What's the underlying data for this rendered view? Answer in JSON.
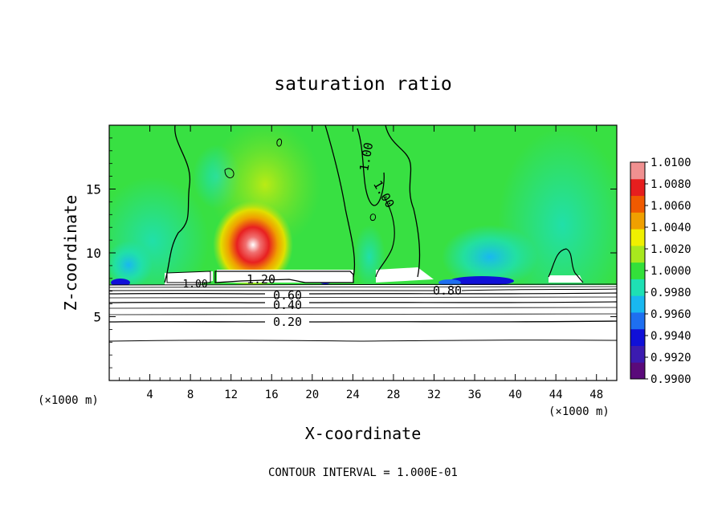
{
  "chart_data": {
    "type": "heatmap",
    "title": "saturation ratio",
    "xlabel": "X-coordinate",
    "ylabel": "Z-coordinate",
    "x_unit_left": "(×1000 m)",
    "x_unit_right": "(×1000 m)",
    "xlim": [
      0,
      50
    ],
    "ylim": [
      0,
      20
    ],
    "x_ticks": [
      4,
      8,
      12,
      16,
      20,
      24,
      28,
      32,
      36,
      40,
      44,
      48
    ],
    "y_ticks": [
      5,
      10,
      15
    ],
    "x_tick_labels": [
      "4",
      "8",
      "12",
      "16",
      "20",
      "24",
      "28",
      "32",
      "36",
      "40",
      "44",
      "48"
    ],
    "y_tick_labels": [
      "5",
      "10",
      "15"
    ],
    "footer": "CONTOUR INTERVAL = 1.000E-01",
    "colorbar": {
      "min": 0.99,
      "max": 1.01,
      "labels": [
        "1.0100",
        "1.0080",
        "1.0060",
        "1.0040",
        "1.0020",
        "1.0000",
        "0.9980",
        "0.9960",
        "0.9940",
        "0.9920",
        "0.9900"
      ],
      "colors": [
        "#5a0a7a",
        "#3b1bb0",
        "#1010d8",
        "#1e6ff0",
        "#19b8f0",
        "#1ee0b4",
        "#33e03a",
        "#a8e81e",
        "#f0f000",
        "#f0a000",
        "#f05a00",
        "#e61e1e",
        "#f09090"
      ]
    },
    "contour_levels": [
      {
        "value": 0.2,
        "label": "0.20",
        "z": 4.6
      },
      {
        "value": 0.4,
        "label": "0.40",
        "z": 6.0
      },
      {
        "value": 0.6,
        "label": "0.60",
        "z": 6.6
      },
      {
        "value": 0.8,
        "label": "0.80",
        "z": 7.2
      },
      {
        "value": 1.0,
        "label": "1.00",
        "z": 7.6
      },
      {
        "value": 1.2,
        "label": "1.20",
        "z": 8.2
      }
    ],
    "grid": false
  }
}
